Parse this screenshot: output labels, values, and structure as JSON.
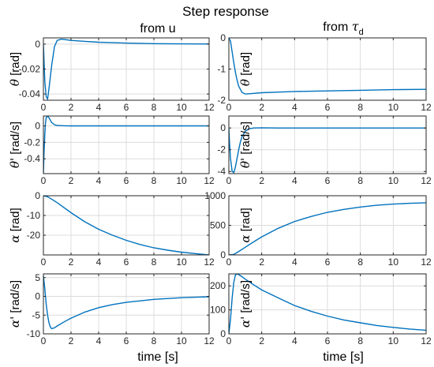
{
  "figure_title": "Step response",
  "column_titles": [
    {
      "text": "from u"
    },
    {
      "text": "from ",
      "symbol": "τ",
      "subscript": "d"
    }
  ],
  "xlabel": "time [s]",
  "chart_data": [
    {
      "type": "line",
      "panel": "theta_from_u",
      "ylabel_symbol": "θ",
      "ylabel_unit": "[rad]",
      "xlim": [
        0,
        12
      ],
      "ylim": [
        -0.045,
        0.005
      ],
      "xticks": [
        0,
        2,
        4,
        6,
        8,
        10,
        12
      ],
      "yticks": [
        -0.04,
        -0.02,
        0
      ],
      "ytick_labels": [
        "-0.04",
        "-0.02",
        "0"
      ],
      "x": [
        0,
        0.1,
        0.2,
        0.3,
        0.4,
        0.6,
        0.8,
        1.0,
        1.3,
        2,
        3,
        4,
        6,
        8,
        10,
        12
      ],
      "y": [
        0,
        -0.03,
        -0.042,
        -0.044,
        -0.036,
        -0.017,
        -0.002,
        0.003,
        0.004,
        0.003,
        0.0022,
        0.0015,
        0.0008,
        0.0004,
        0.0002,
        0.0001
      ]
    },
    {
      "type": "line",
      "panel": "theta_from_tau",
      "ylabel_symbol": "θ",
      "ylabel_unit": "[rad]",
      "xlim": [
        0,
        12
      ],
      "ylim": [
        -2,
        0
      ],
      "xticks": [
        0,
        2,
        4,
        6,
        8,
        10,
        12
      ],
      "yticks": [
        -2,
        -1,
        0
      ],
      "ytick_labels": [
        "-2",
        "-1",
        "0"
      ],
      "x": [
        0,
        0.1,
        0.2,
        0.3,
        0.4,
        0.5,
        0.6,
        0.8,
        1,
        1.3,
        2,
        3,
        4,
        6,
        8,
        10,
        12
      ],
      "y": [
        0,
        -0.1,
        -0.45,
        -0.8,
        -1.1,
        -1.35,
        -1.55,
        -1.75,
        -1.8,
        -1.79,
        -1.76,
        -1.74,
        -1.72,
        -1.7,
        -1.68,
        -1.66,
        -1.65
      ]
    },
    {
      "type": "line",
      "panel": "thetadot_from_u",
      "ylabel_symbol": "θ'",
      "ylabel_unit": "[rad/s]",
      "xlim": [
        0,
        12
      ],
      "ylim": [
        -0.58,
        0.12
      ],
      "xticks": [
        0,
        2,
        4,
        6,
        8,
        10,
        12
      ],
      "yticks": [
        -0.4,
        -0.2,
        0
      ],
      "ytick_labels": [
        "-0.4",
        "-0.2",
        "0"
      ],
      "x": [
        0,
        0.05,
        0.1,
        0.15,
        0.2,
        0.3,
        0.4,
        0.5,
        0.6,
        0.8,
        1,
        1.3,
        1.6,
        2,
        3,
        4,
        12
      ],
      "y": [
        -0.58,
        -0.3,
        -0.1,
        0.03,
        0.1,
        0.12,
        0.1,
        0.07,
        0.04,
        0.015,
        0.005,
        0.003,
        0.001,
        0,
        0,
        0,
        0
      ]
    },
    {
      "type": "line",
      "panel": "thetadot_from_tau",
      "ylabel_symbol": "θ'",
      "ylabel_unit": "[rad/s]",
      "xlim": [
        0,
        12
      ],
      "ylim": [
        -4.2,
        1.1
      ],
      "xticks": [
        0,
        2,
        4,
        6,
        8,
        10,
        12
      ],
      "yticks": [
        -4,
        -2,
        0
      ],
      "ytick_labels": [
        "-4",
        "-2",
        "0"
      ],
      "x": [
        0,
        0.05,
        0.1,
        0.2,
        0.3,
        0.4,
        0.5,
        0.6,
        0.7,
        0.8,
        1,
        1.2,
        1.5,
        2,
        3,
        12
      ],
      "y": [
        0,
        -1.5,
        -2.8,
        -4.0,
        -4.1,
        -3.6,
        -2.8,
        -2.0,
        -1.3,
        -0.8,
        -0.3,
        -0.1,
        0,
        0.02,
        0,
        0
      ]
    },
    {
      "type": "line",
      "panel": "alpha_from_u",
      "ylabel_symbol": "α",
      "ylabel_unit": "[rad]",
      "xlim": [
        0,
        12
      ],
      "ylim": [
        -30,
        0
      ],
      "xticks": [
        0,
        2,
        4,
        6,
        8,
        10,
        12
      ],
      "yticks": [
        -20,
        -10,
        0
      ],
      "ytick_labels": [
        "-20",
        "-10",
        "0"
      ],
      "x": [
        0,
        0.3,
        0.5,
        1,
        2,
        3,
        4,
        5,
        6,
        7,
        8,
        9,
        10,
        11,
        12
      ],
      "y": [
        0,
        -0.5,
        -1.3,
        -3.5,
        -8.6,
        -13.2,
        -17,
        -20,
        -22.6,
        -24.7,
        -26.4,
        -27.6,
        -28.6,
        -29.3,
        -30
      ]
    },
    {
      "type": "line",
      "panel": "alpha_from_tau",
      "ylabel_symbol": "α",
      "ylabel_unit": "[rad]",
      "xlim": [
        0,
        12
      ],
      "ylim": [
        0,
        1000
      ],
      "xticks": [
        0,
        2,
        4,
        6,
        8,
        10,
        12
      ],
      "yticks": [
        0,
        500,
        1000
      ],
      "ytick_labels": [
        "0",
        "500",
        "1000"
      ],
      "x": [
        0,
        0.3,
        0.5,
        1,
        1.5,
        2,
        3,
        4,
        5,
        6,
        7,
        8,
        9,
        10,
        11,
        12
      ],
      "y": [
        0,
        10,
        40,
        130,
        220,
        305,
        450,
        565,
        650,
        720,
        770,
        810,
        838,
        858,
        872,
        882
      ]
    },
    {
      "type": "line",
      "panel": "alphadot_from_u",
      "ylabel_symbol": "α'",
      "ylabel_unit": "[rad/s]",
      "xlim": [
        0,
        12
      ],
      "ylim": [
        -10,
        6
      ],
      "xticks": [
        0,
        2,
        4,
        6,
        8,
        10,
        12
      ],
      "yticks": [
        -10,
        -5,
        0,
        5
      ],
      "ytick_labels": [
        "-10",
        "-5",
        "0",
        "5"
      ],
      "x": [
        0,
        0.1,
        0.2,
        0.3,
        0.4,
        0.5,
        0.6,
        0.8,
        1,
        1.5,
        2,
        3,
        4,
        5,
        6,
        8,
        10,
        12
      ],
      "y": [
        5.5,
        2,
        -2,
        -5,
        -7,
        -8.2,
        -8.6,
        -8.4,
        -7.9,
        -6.8,
        -5.8,
        -4.2,
        -3,
        -2.2,
        -1.6,
        -0.8,
        -0.35,
        -0.1
      ]
    },
    {
      "type": "line",
      "panel": "alphadot_from_tau",
      "ylabel_symbol": "α'",
      "ylabel_unit": "[rad/s]",
      "xlim": [
        0,
        12
      ],
      "ylim": [
        0,
        250
      ],
      "xticks": [
        0,
        2,
        4,
        6,
        8,
        10,
        12
      ],
      "yticks": [
        0,
        100,
        200
      ],
      "ytick_labels": [
        "0",
        "100",
        "200"
      ],
      "x": [
        0,
        0.1,
        0.2,
        0.3,
        0.4,
        0.5,
        0.6,
        0.8,
        1,
        1.5,
        2,
        3,
        4,
        5,
        6,
        7,
        8,
        9,
        10,
        11,
        12
      ],
      "y": [
        0,
        60,
        150,
        215,
        245,
        250,
        247,
        238,
        228,
        205,
        183,
        150,
        118,
        94,
        74,
        58,
        46,
        35,
        27,
        20,
        15
      ]
    }
  ],
  "colors": {
    "line": "#0072bd",
    "grid": "#dcdcdc",
    "axes": "#262626"
  }
}
